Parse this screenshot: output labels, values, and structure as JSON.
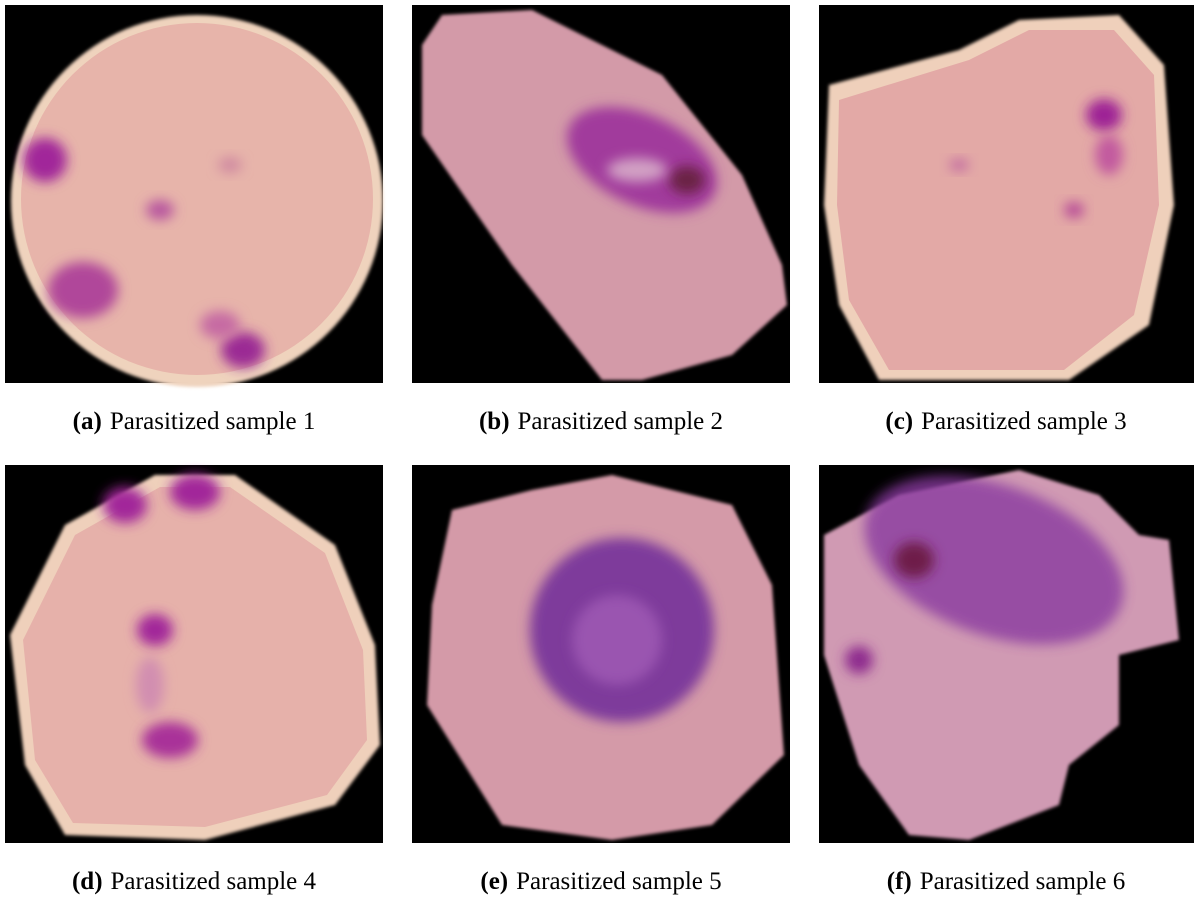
{
  "figure": {
    "panels": [
      {
        "label": "(a)",
        "caption": "Parasitized sample 1"
      },
      {
        "label": "(b)",
        "caption": "Parasitized sample 2"
      },
      {
        "label": "(c)",
        "caption": "Parasitized sample 3"
      },
      {
        "label": "(d)",
        "caption": "Parasitized sample 4"
      },
      {
        "label": "(e)",
        "caption": "Parasitized sample 5"
      },
      {
        "label": "(f)",
        "caption": "Parasitized sample 6"
      }
    ]
  }
}
